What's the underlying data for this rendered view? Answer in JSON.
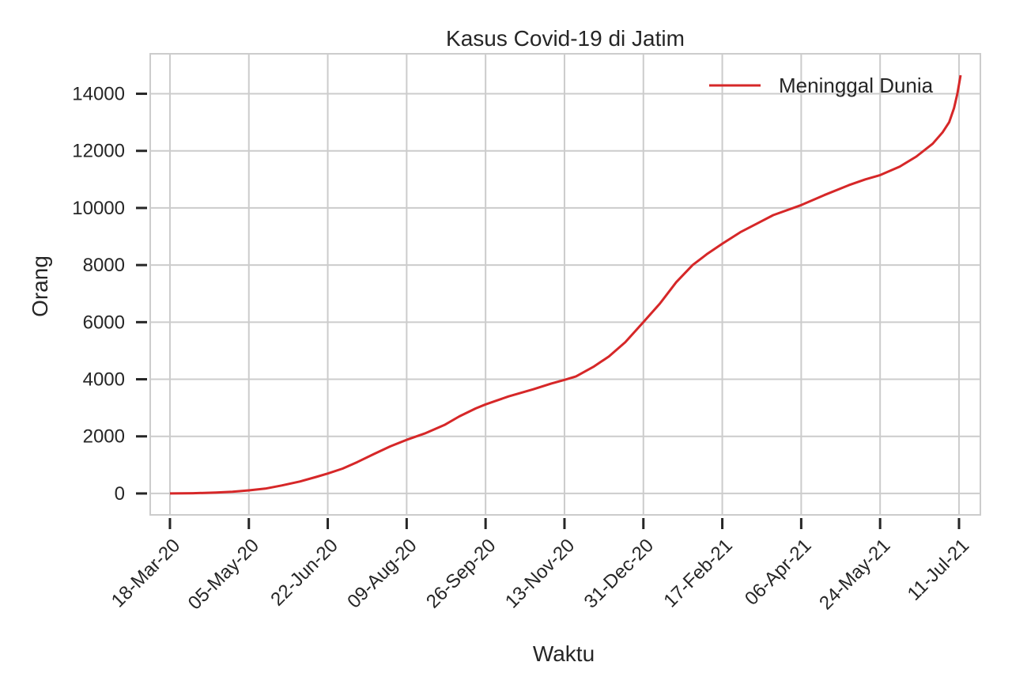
{
  "chart_data": {
    "type": "line",
    "title": "Kasus Covid-19 di Jatim",
    "xlabel": "Waktu",
    "ylabel": "Orang",
    "x_tick_labels": [
      "18-Mar-20",
      "05-May-20",
      "22-Jun-20",
      "09-Aug-20",
      "26-Sep-20",
      "13-Nov-20",
      "31-Dec-20",
      "17-Feb-21",
      "06-Apr-21",
      "24-May-21",
      "11-Jul-21"
    ],
    "y_ticks": [
      0,
      2000,
      4000,
      6000,
      8000,
      10000,
      12000,
      14000
    ],
    "xlim": [
      "2020-03-06",
      "2021-07-24"
    ],
    "ylim": [
      -750,
      15400
    ],
    "grid": true,
    "legend_position": "top-right",
    "series": [
      {
        "name": "Meninggal Dunia",
        "color": "#d62728",
        "points": [
          [
            "2020-03-18",
            0
          ],
          [
            "2020-04-01",
            10
          ],
          [
            "2020-04-15",
            30
          ],
          [
            "2020-04-25",
            60
          ],
          [
            "2020-05-05",
            110
          ],
          [
            "2020-05-15",
            170
          ],
          [
            "2020-05-25",
            280
          ],
          [
            "2020-06-05",
            420
          ],
          [
            "2020-06-15",
            580
          ],
          [
            "2020-06-22",
            700
          ],
          [
            "2020-07-01",
            870
          ],
          [
            "2020-07-10",
            1100
          ],
          [
            "2020-07-20",
            1380
          ],
          [
            "2020-07-30",
            1650
          ],
          [
            "2020-08-09",
            1880
          ],
          [
            "2020-08-20",
            2100
          ],
          [
            "2020-09-01",
            2400
          ],
          [
            "2020-09-10",
            2700
          ],
          [
            "2020-09-20",
            2980
          ],
          [
            "2020-09-26",
            3120
          ],
          [
            "2020-10-10",
            3400
          ],
          [
            "2020-10-25",
            3650
          ],
          [
            "2020-11-05",
            3850
          ],
          [
            "2020-11-13",
            3980
          ],
          [
            "2020-11-20",
            4100
          ],
          [
            "2020-12-01",
            4450
          ],
          [
            "2020-12-10",
            4800
          ],
          [
            "2020-12-20",
            5300
          ],
          [
            "2020-12-31",
            6000
          ],
          [
            "2021-01-10",
            6650
          ],
          [
            "2021-01-20",
            7400
          ],
          [
            "2021-01-30",
            8000
          ],
          [
            "2021-02-08",
            8400
          ],
          [
            "2021-02-17",
            8750
          ],
          [
            "2021-02-28",
            9150
          ],
          [
            "2021-03-10",
            9450
          ],
          [
            "2021-03-20",
            9750
          ],
          [
            "2021-04-06",
            10100
          ],
          [
            "2021-04-20",
            10450
          ],
          [
            "2021-05-05",
            10800
          ],
          [
            "2021-05-15",
            11000
          ],
          [
            "2021-05-24",
            11150
          ],
          [
            "2021-06-05",
            11450
          ],
          [
            "2021-06-15",
            11800
          ],
          [
            "2021-06-25",
            12250
          ],
          [
            "2021-07-01",
            12650
          ],
          [
            "2021-07-05",
            13000
          ],
          [
            "2021-07-08",
            13500
          ],
          [
            "2021-07-10",
            14000
          ],
          [
            "2021-07-12",
            14650
          ]
        ]
      }
    ]
  }
}
